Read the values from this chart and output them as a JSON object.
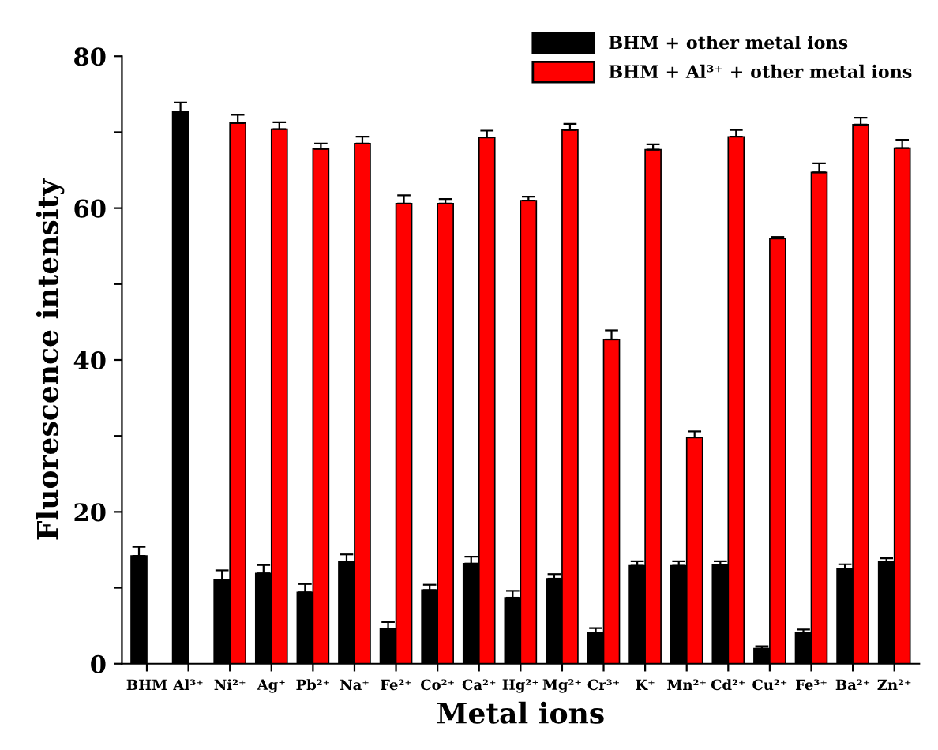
{
  "chart_data": {
    "type": "bar",
    "xlabel": "Metal ions",
    "ylabel": "Fluorescence intensity",
    "categories": [
      "BHM",
      "Al³⁺",
      "Ni²⁺",
      "Ag⁺",
      "Pb²⁺",
      "Na⁺",
      "Fe²⁺",
      "Co²⁺",
      "Ca²⁺",
      "Hg²⁺",
      "Mg²⁺",
      "Cr³⁺",
      "K⁺",
      "Mn²⁺",
      "Cd²⁺",
      "Cu²⁺",
      "Fe³⁺",
      "Ba²⁺",
      "Zn²⁺"
    ],
    "series": [
      {
        "name": "BHM + other metal ions",
        "color": "#000000",
        "values": [
          14.2,
          72.7,
          11.0,
          11.9,
          9.4,
          13.4,
          4.6,
          9.7,
          13.2,
          8.7,
          11.2,
          4.1,
          12.9,
          12.9,
          13.0,
          2.0,
          4.1,
          12.5,
          13.4
        ],
        "errors": [
          [
            14.2,
            15.4
          ],
          [
            72.7,
            73.9
          ],
          [
            11.0,
            12.3
          ],
          [
            11.9,
            13.0
          ],
          [
            9.4,
            10.5
          ],
          [
            13.4,
            14.4
          ],
          [
            4.6,
            5.5
          ],
          [
            9.7,
            10.4
          ],
          [
            13.2,
            14.1
          ],
          [
            8.7,
            9.6
          ],
          [
            11.2,
            11.8
          ],
          [
            4.1,
            4.7
          ],
          [
            12.9,
            13.5
          ],
          [
            12.9,
            13.5
          ],
          [
            13.0,
            13.5
          ],
          [
            2.0,
            2.3
          ],
          [
            4.1,
            4.5
          ],
          [
            12.5,
            13.1
          ],
          [
            13.4,
            13.9
          ]
        ]
      },
      {
        "name": "BHM + Al³⁺ + other metal ions",
        "color": "#ff0000",
        "values": [
          null,
          null,
          71.2,
          70.4,
          67.8,
          68.5,
          60.6,
          60.6,
          69.3,
          61.0,
          70.3,
          42.7,
          67.7,
          29.8,
          69.4,
          56.0,
          64.7,
          71.0,
          67.9
        ],
        "errors": [
          null,
          null,
          [
            71.2,
            72.3
          ],
          [
            70.4,
            71.3
          ],
          [
            67.8,
            68.5
          ],
          [
            68.5,
            69.4
          ],
          [
            60.6,
            61.7
          ],
          [
            60.6,
            61.2
          ],
          [
            69.3,
            70.2
          ],
          [
            61.0,
            61.5
          ],
          [
            70.3,
            71.1
          ],
          [
            42.7,
            43.9
          ],
          [
            67.7,
            68.4
          ],
          [
            29.8,
            30.6
          ],
          [
            69.4,
            70.3
          ],
          [
            56.0,
            56.2
          ],
          [
            64.7,
            65.9
          ],
          [
            71.0,
            71.9
          ],
          [
            67.9,
            69.0
          ]
        ]
      }
    ],
    "ylim": [
      0,
      80
    ],
    "yticks": [
      0,
      {
        "value": 10,
        "label": null
      },
      20,
      {
        "value": 30,
        "label": null
      },
      40,
      {
        "value": 50,
        "label": null
      },
      60,
      {
        "value": 70,
        "label": null
      },
      80
    ],
    "legend": "top right",
    "grid": false
  }
}
